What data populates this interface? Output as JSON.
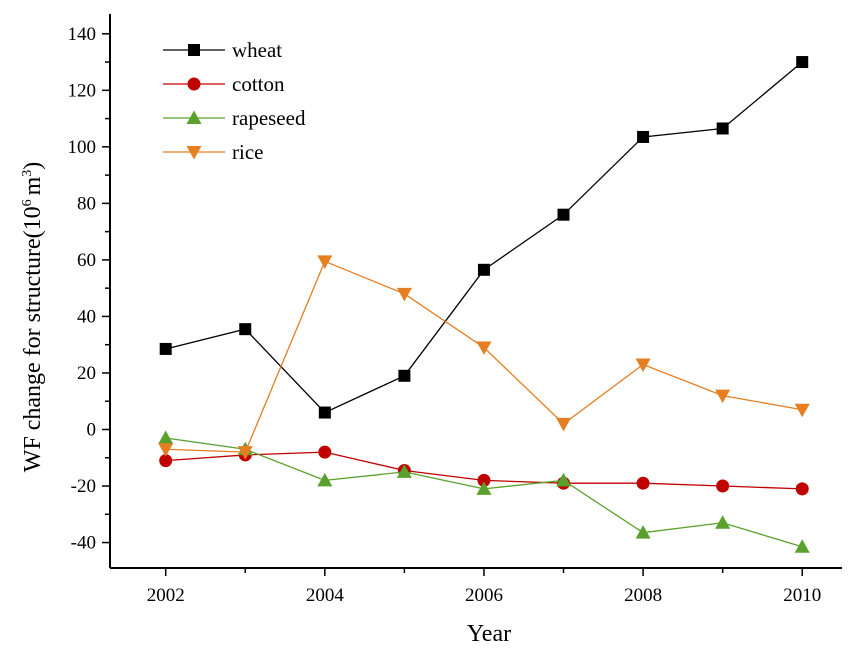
{
  "chart_data": {
    "type": "line",
    "xlabel": "Year",
    "ylabel": "WF change for structure(10",
    "ylabel_exponent": "6",
    "ylabel_unit": "m",
    "ylabel_unit_exponent": "3",
    "ylabel_close": ")",
    "x": [
      2002,
      2003,
      2004,
      2005,
      2006,
      2007,
      2008,
      2009,
      2010
    ],
    "xlim": [
      2001.3,
      2010.5
    ],
    "ylim": [
      -49,
      147
    ],
    "xticks": [
      2002,
      2004,
      2006,
      2008,
      2010
    ],
    "yticks": [
      -40,
      -20,
      0,
      20,
      40,
      60,
      80,
      100,
      120,
      140
    ],
    "grid": false,
    "legend_position": "top-left",
    "series": [
      {
        "name": "wheat",
        "color": "#000000",
        "marker": "square",
        "values": [
          28.5,
          35.5,
          6,
          19,
          56.5,
          76,
          103.5,
          106.5,
          130
        ]
      },
      {
        "name": "cotton",
        "color": "#c00000",
        "marker": "circle",
        "values": [
          -11,
          -9,
          -8,
          -14.5,
          -18,
          -19,
          -19,
          -20,
          -21
        ]
      },
      {
        "name": "rapeseed",
        "color": "#5aa02c",
        "marker": "triangle-up",
        "values": [
          -3,
          -7,
          -18,
          -15,
          -21,
          -18,
          -36.5,
          -33,
          -41.5
        ]
      },
      {
        "name": "rice",
        "color": "#e67e22",
        "marker": "triangle-down",
        "values": [
          -7,
          -8,
          59.5,
          48,
          29,
          2,
          23,
          12,
          7
        ]
      }
    ]
  }
}
